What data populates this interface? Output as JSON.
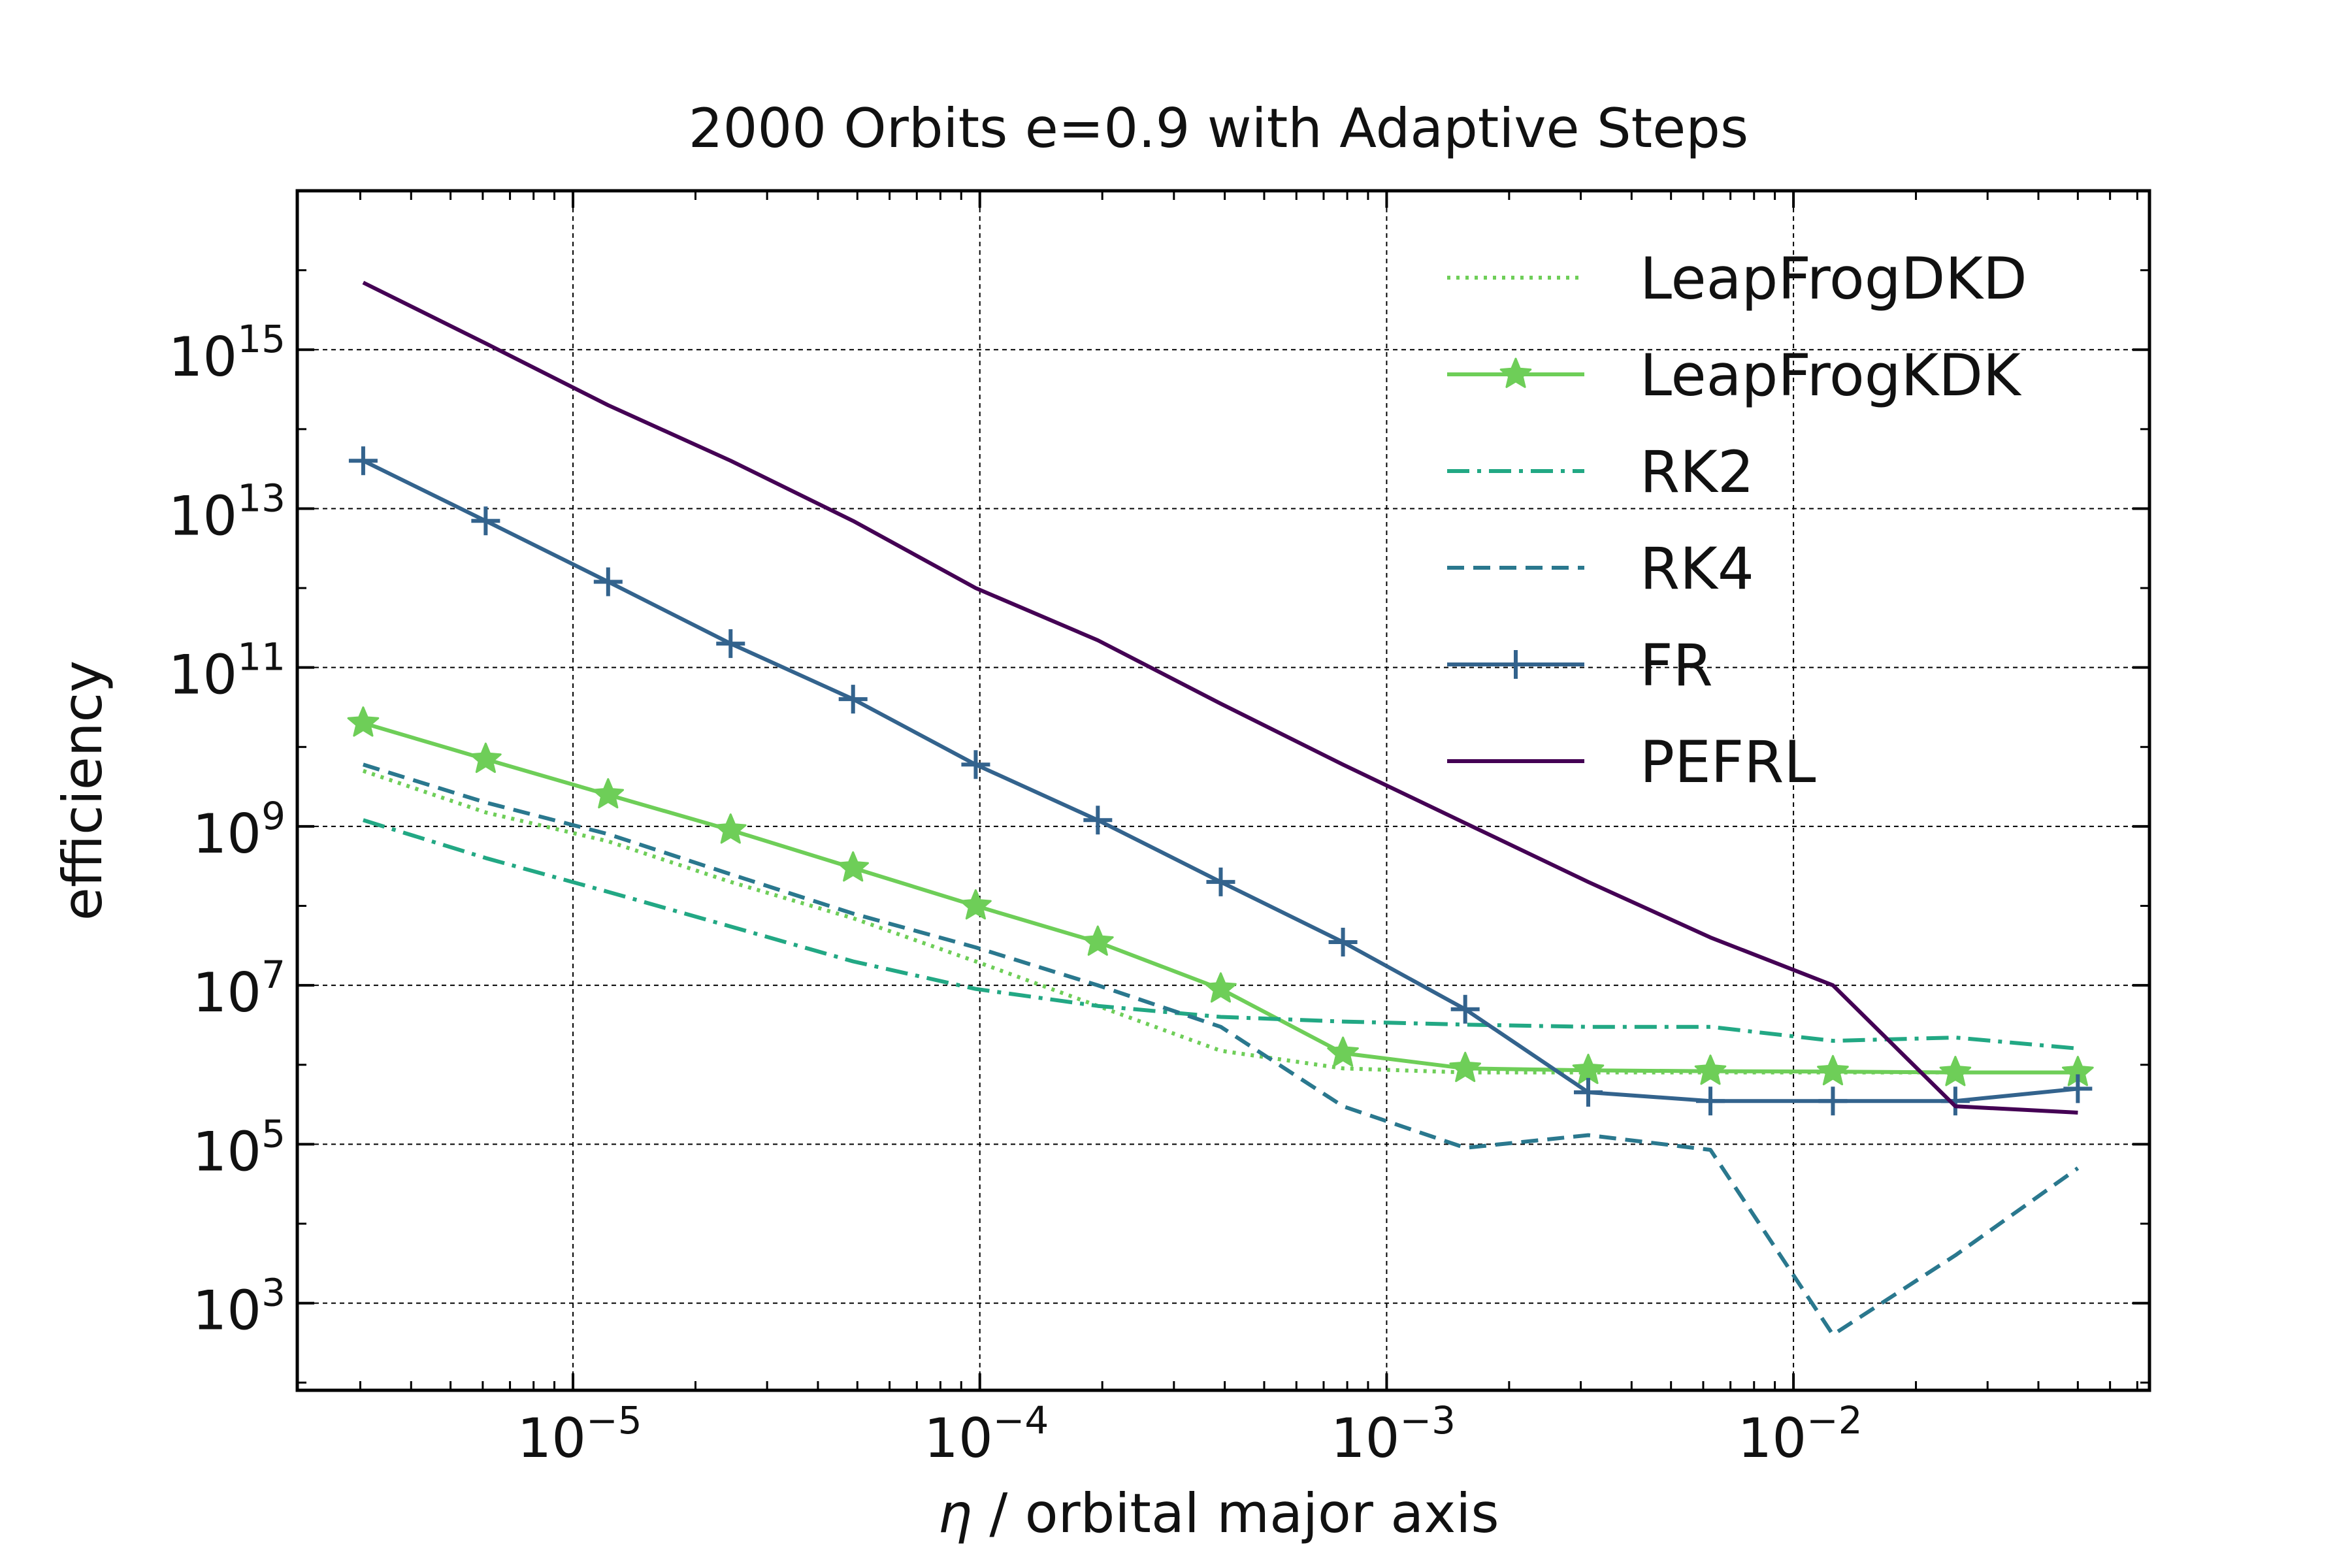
{
  "chart_data": {
    "type": "line",
    "title": "2000 Orbits e=0.9 with Adaptive Steps",
    "xlabel_symbol": "η",
    "xlabel_text": " / orbital major axis",
    "ylabel": "efficiency",
    "xscale": "log",
    "yscale": "log",
    "xlim": [
      2.1e-06,
      0.075
    ],
    "ylim": [
      80,
      1e+17
    ],
    "grid": true,
    "legend_position": "top-right",
    "x_ticks": [
      {
        "base": "10",
        "exp": "−5",
        "value": 1e-05
      },
      {
        "base": "10",
        "exp": "−4",
        "value": 0.0001
      },
      {
        "base": "10",
        "exp": "−3",
        "value": 0.001
      },
      {
        "base": "10",
        "exp": "−2",
        "value": 0.01
      }
    ],
    "y_ticks": [
      {
        "base": "10",
        "exp": "15",
        "value": 1000000000000000.0
      },
      {
        "base": "10",
        "exp": "13",
        "value": 10000000000000.0
      },
      {
        "base": "10",
        "exp": "11",
        "value": 100000000000.0
      },
      {
        "base": "10",
        "exp": "9",
        "value": 1000000000.0
      },
      {
        "base": "10",
        "exp": "7",
        "value": 10000000.0
      },
      {
        "base": "10",
        "exp": "5",
        "value": 100000.0
      },
      {
        "base": "10",
        "exp": "3",
        "value": 1000.0
      }
    ],
    "x": [
      3.05e-06,
      6.1e-06,
      1.22e-05,
      2.44e-05,
      4.88e-05,
      9.77e-05,
      0.000195,
      0.000391,
      0.000781,
      0.00156,
      0.00313,
      0.00625,
      0.0125,
      0.025,
      0.05
    ],
    "series": [
      {
        "name": "LeapFrogDKD",
        "color": "#6ece58",
        "style": "dotted",
        "marker": "none",
        "values": [
          5000000000.0,
          1500000000.0,
          650000000.0,
          200000000.0,
          70000000.0,
          20000000.0,
          5500000.0,
          1500000.0,
          900000.0,
          800000.0,
          800000.0,
          800000.0,
          800000.0,
          800000.0,
          800000.0
        ]
      },
      {
        "name": "LeapFrogKDK",
        "color": "#6ece58",
        "style": "solid",
        "marker": "star",
        "values": [
          20000000000.0,
          7000000000.0,
          2500000000.0,
          900000000.0,
          300000000.0,
          100000000.0,
          35000000.0,
          9000000.0,
          1400000.0,
          900000.0,
          850000.0,
          830000.0,
          820000.0,
          800000.0,
          800000.0
        ]
      },
      {
        "name": "RK2",
        "color": "#22a884",
        "style": "dashdot",
        "marker": "none",
        "values": [
          1200000000.0,
          400000000.0,
          150000000.0,
          55000000.0,
          20000000.0,
          9000000.0,
          5500000.0,
          4000000.0,
          3500000.0,
          3200000.0,
          3000000.0,
          3000000.0,
          2000000.0,
          2200000.0,
          1600000.0
        ]
      },
      {
        "name": "RK4",
        "color": "#2a788e",
        "style": "dashed",
        "marker": "none",
        "values": [
          6000000000.0,
          2000000000.0,
          800000000.0,
          250000000.0,
          80000000.0,
          30000000.0,
          10000000.0,
          3000000.0,
          300000.0,
          90000.0,
          130000.0,
          85000.0,
          400,
          4000.0,
          50000.0
        ]
      },
      {
        "name": "FR",
        "color": "#33638d",
        "style": "solid",
        "marker": "plus",
        "values": [
          40000000000000.0,
          7000000000000.0,
          1200000000000.0,
          200000000000.0,
          40000000000.0,
          6000000000.0,
          1200000000.0,
          200000000.0,
          35000000.0,
          5000000.0,
          450000.0,
          350000.0,
          350000.0,
          350000.0,
          500000.0
        ]
      },
      {
        "name": "PEFRL",
        "color": "#440154",
        "style": "solid",
        "marker": "none",
        "values": [
          7000000000000000.0,
          1200000000000000.0,
          200000000000000.0,
          40000000000000.0,
          7000000000000.0,
          1000000000000.0,
          220000000000.0,
          35000000000.0,
          6000000000.0,
          1100000000.0,
          200000000.0,
          40000000.0,
          10000000.0,
          300000.0,
          250000.0
        ]
      }
    ]
  }
}
